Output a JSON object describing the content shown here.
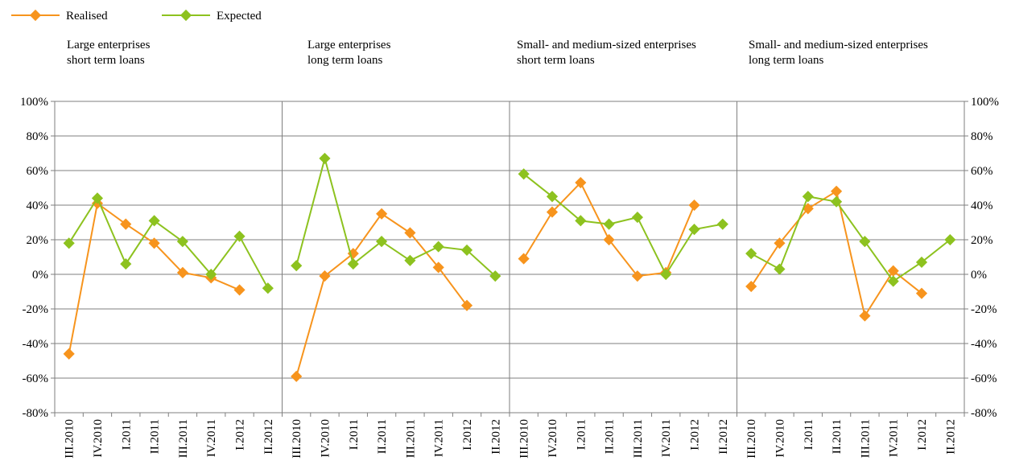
{
  "legend": [
    {
      "name": "Realised",
      "color": "#F7941D"
    },
    {
      "name": "Expected",
      "color": "#8DC21F"
    }
  ],
  "chart_data": {
    "type": "line",
    "categories": [
      "III.2010",
      "IV.2010",
      "I.2011",
      "II.2011",
      "III.2011",
      "IV.2011",
      "I.2012",
      "II.2012"
    ],
    "ylim": [
      -80,
      100
    ],
    "yticks": [
      "-80%",
      "-60%",
      "-40%",
      "-20%",
      "0%",
      "20%",
      "40%",
      "60%",
      "80%",
      "100%"
    ],
    "grid": true,
    "legend_position": "top-left",
    "panels": [
      {
        "title_line1": "Large enterprises",
        "title_line2": "short term loans",
        "series": [
          {
            "name": "Realised",
            "values": [
              -46,
              41,
              29,
              18,
              1,
              -2,
              -9,
              null
            ]
          },
          {
            "name": "Expected",
            "values": [
              18,
              44,
              6,
              31,
              19,
              0,
              22,
              -8
            ]
          }
        ]
      },
      {
        "title_line1": "Large enterprises",
        "title_line2": "long term loans",
        "series": [
          {
            "name": "Realised",
            "values": [
              -59,
              -1,
              12,
              35,
              24,
              4,
              -18,
              null
            ]
          },
          {
            "name": "Expected",
            "values": [
              5,
              67,
              6,
              19,
              8,
              16,
              14,
              -1
            ]
          }
        ]
      },
      {
        "title_line1": "Small- and medium-sized enterprises",
        "title_line2": "short term loans",
        "series": [
          {
            "name": "Realised",
            "values": [
              9,
              36,
              53,
              20,
              -1,
              1,
              40,
              null
            ]
          },
          {
            "name": "Expected",
            "values": [
              58,
              45,
              31,
              29,
              33,
              0,
              26,
              29
            ]
          }
        ]
      },
      {
        "title_line1": "Small- and medium-sized enterprises",
        "title_line2": "long term loans",
        "series": [
          {
            "name": "Realised",
            "values": [
              -7,
              18,
              38,
              48,
              -24,
              2,
              -11,
              null
            ]
          },
          {
            "name": "Expected",
            "values": [
              12,
              3,
              45,
              42,
              19,
              -4,
              7,
              20
            ]
          }
        ]
      }
    ]
  }
}
